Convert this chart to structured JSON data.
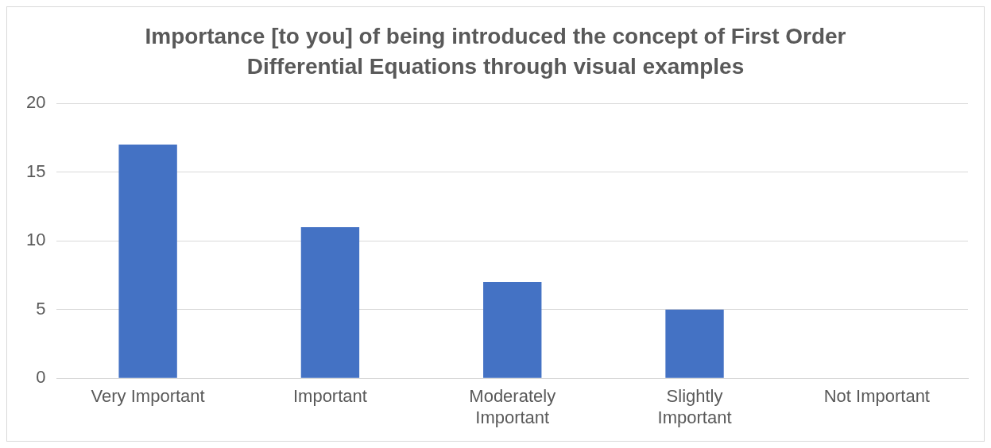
{
  "chart_data": {
    "type": "bar",
    "title": "Importance [to you] of being introduced the concept of First Order Differential Equations through visual examples",
    "categories": [
      "Very Important",
      "Important",
      "Moderately Important",
      "Slightly Important",
      "Not Important"
    ],
    "values": [
      17,
      11,
      7,
      5,
      0
    ],
    "color": "#4472c4",
    "ylim": [
      0,
      20
    ],
    "yticks": [
      0,
      5,
      10,
      15,
      20
    ],
    "grid": "y",
    "legend": false
  }
}
